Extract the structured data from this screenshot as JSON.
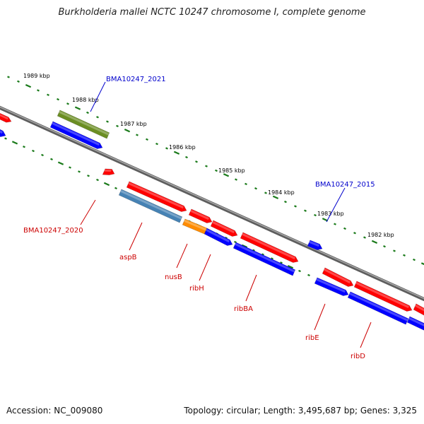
{
  "title": "Burkholderia mallei NCTC 10247 chromosome I, complete genome",
  "footer": {
    "accession": "Accession: NC_009080",
    "summary": "Topology: circular; Length: 3,495,687 bp; Genes: 3,325"
  },
  "colors": {
    "backbone": "#7f7f7f",
    "tick": "#1a7a1a",
    "tick_label": "#000000",
    "callout_blue": "#0000cc",
    "callout_red": "#cc0000",
    "feature_red": "#ff0000",
    "feature_blue": "#0000ff",
    "feature_olive": "#6b8e23",
    "feature_steelblue": "#4682b4",
    "feature_orange": "#ff8c00"
  },
  "ticks": [
    {
      "label": "1989 kbp"
    },
    {
      "label": "1988 kbp"
    },
    {
      "label": "1987 kbp"
    },
    {
      "label": "1986 kbp"
    },
    {
      "label": "1985 kbp"
    },
    {
      "label": "1984 kbp"
    },
    {
      "label": "1983 kbp"
    },
    {
      "label": "1982 kbp"
    }
  ],
  "callouts": [
    {
      "label": "BMA10247_2021",
      "color": "blue"
    },
    {
      "label": "BMA10247_2015",
      "color": "blue"
    },
    {
      "label": "BMA10247_2020",
      "color": "red"
    },
    {
      "label": "aspB",
      "color": "red"
    },
    {
      "label": "nusB",
      "color": "red"
    },
    {
      "label": "ribH",
      "color": "red"
    },
    {
      "label": "ribBA",
      "color": "red"
    },
    {
      "label": "ribE",
      "color": "red"
    },
    {
      "label": "ribD",
      "color": "red"
    }
  ]
}
